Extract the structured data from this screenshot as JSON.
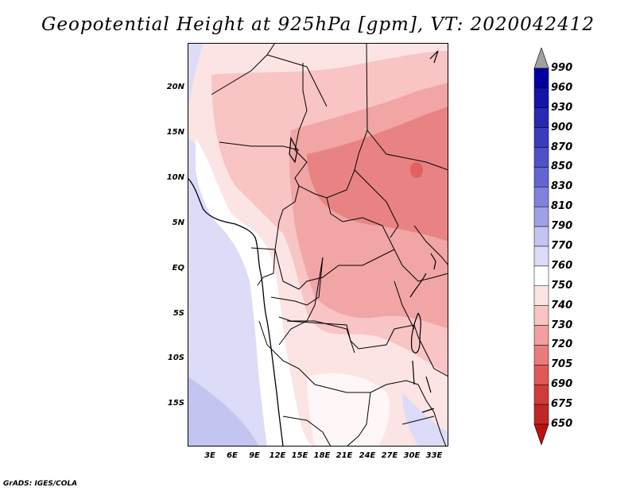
{
  "title": "Geopotential Height at 925hPa [gpm], VT: 2020042412",
  "credit": "GrADS: IGES/COLA",
  "map": {
    "lat_labels": [
      "20N",
      "15N",
      "10N",
      "5N",
      "EQ",
      "5S",
      "10S",
      "15S"
    ],
    "lon_labels": [
      "3E",
      "6E",
      "9E",
      "12E",
      "15E",
      "18E",
      "21E",
      "24E",
      "27E",
      "30E",
      "33E"
    ],
    "lat_range": [
      -20,
      25
    ],
    "lon_range": [
      0,
      35
    ]
  },
  "colorbar": {
    "levels": [
      "990",
      "960",
      "930",
      "900",
      "870",
      "850",
      "830",
      "810",
      "790",
      "770",
      "760",
      "750",
      "740",
      "730",
      "720",
      "705",
      "690",
      "675",
      "650"
    ],
    "colors": [
      "#0000a0",
      "#1414a8",
      "#2828b4",
      "#3c3cbe",
      "#5050c8",
      "#6464d2",
      "#8282dc",
      "#a0a0e6",
      "#c4c4f0",
      "#dcdcf8",
      "#ffffff",
      "#fde4e4",
      "#f8c4c4",
      "#f0a0a0",
      "#e87c7c",
      "#e05858",
      "#d03c3c",
      "#c02828",
      "#a81414"
    ],
    "over_color": "#a0a0a0",
    "under_color": "#c01010"
  }
}
